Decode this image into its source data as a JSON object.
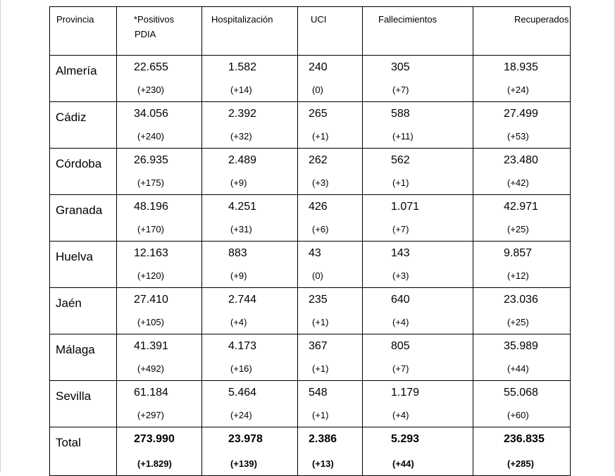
{
  "table": {
    "headers": [
      {
        "key": "provincia",
        "label": "Provincia",
        "label2": ""
      },
      {
        "key": "positivos",
        "label": "*Positivos",
        "label2": "PDIA"
      },
      {
        "key": "hospitalizacion",
        "label": "Hospitalización",
        "label2": ""
      },
      {
        "key": "uci",
        "label": "UCI",
        "label2": ""
      },
      {
        "key": "fallecimientos",
        "label": "Fallecimientos",
        "label2": ""
      },
      {
        "key": "recuperados",
        "label": "Recuperados",
        "label2": ""
      }
    ],
    "rows": [
      {
        "provincia": "Almería",
        "cells": [
          {
            "value": "22.655",
            "delta": "(+230)"
          },
          {
            "value": "1.582",
            "delta": "(+14)"
          },
          {
            "value": "240",
            "delta": "(0)"
          },
          {
            "value": "305",
            "delta": "(+7)"
          },
          {
            "value": "18.935",
            "delta": "(+24)"
          }
        ]
      },
      {
        "provincia": "Cádiz",
        "cells": [
          {
            "value": "34.056",
            "delta": "(+240)"
          },
          {
            "value": "2.392",
            "delta": "(+32)"
          },
          {
            "value": "265",
            "delta": "(+1)"
          },
          {
            "value": "588",
            "delta": "(+11)"
          },
          {
            "value": "27.499",
            "delta": "(+53)"
          }
        ]
      },
      {
        "provincia": "Córdoba",
        "cells": [
          {
            "value": "26.935",
            "delta": "(+175)"
          },
          {
            "value": "2.489",
            "delta": "(+9)"
          },
          {
            "value": "262",
            "delta": "(+3)"
          },
          {
            "value": "562",
            "delta": "(+1)"
          },
          {
            "value": "23.480",
            "delta": "(+42)"
          }
        ]
      },
      {
        "provincia": "Granada",
        "cells": [
          {
            "value": "48.196",
            "delta": "(+170)"
          },
          {
            "value": "4.251",
            "delta": "(+31)"
          },
          {
            "value": "426",
            "delta": "(+6)"
          },
          {
            "value": "1.071",
            "delta": "(+7)"
          },
          {
            "value": "42.971",
            "delta": "(+25)"
          }
        ]
      },
      {
        "provincia": "Huelva",
        "cells": [
          {
            "value": "12.163",
            "delta": "(+120)"
          },
          {
            "value": "883",
            "delta": "(+9)"
          },
          {
            "value": "43",
            "delta": "(0)"
          },
          {
            "value": "143",
            "delta": "(+3)"
          },
          {
            "value": "9.857",
            "delta": "(+12)"
          }
        ]
      },
      {
        "provincia": "Jaén",
        "cells": [
          {
            "value": "27.410",
            "delta": "(+105)"
          },
          {
            "value": "2.744",
            "delta": "(+4)"
          },
          {
            "value": "235",
            "delta": "(+1)"
          },
          {
            "value": "640",
            "delta": "(+4)"
          },
          {
            "value": "23.036",
            "delta": "(+25)"
          }
        ]
      },
      {
        "provincia": "Málaga",
        "cells": [
          {
            "value": "41.391",
            "delta": "(+492)"
          },
          {
            "value": "4.173",
            "delta": "(+16)"
          },
          {
            "value": "367",
            "delta": "(+1)"
          },
          {
            "value": "805",
            "delta": "(+7)"
          },
          {
            "value": "35.989",
            "delta": "(+44)"
          }
        ]
      },
      {
        "provincia": "Sevilla",
        "cells": [
          {
            "value": "61.184",
            "delta": "(+297)"
          },
          {
            "value": "5.464",
            "delta": "(+24)"
          },
          {
            "value": "548",
            "delta": "(+1)"
          },
          {
            "value": "1.179",
            "delta": "(+4)"
          },
          {
            "value": "55.068",
            "delta": "(+60)"
          }
        ]
      }
    ],
    "total": {
      "provincia": "Total",
      "cells": [
        {
          "value": "273.990",
          "delta": "(+1.829)"
        },
        {
          "value": "23.978",
          "delta": "(+139)"
        },
        {
          "value": "2.386",
          "delta": "(+13)"
        },
        {
          "value": "5.293",
          "delta": "(+44)"
        },
        {
          "value": "236.835",
          "delta": "(+285)"
        }
      ]
    }
  }
}
